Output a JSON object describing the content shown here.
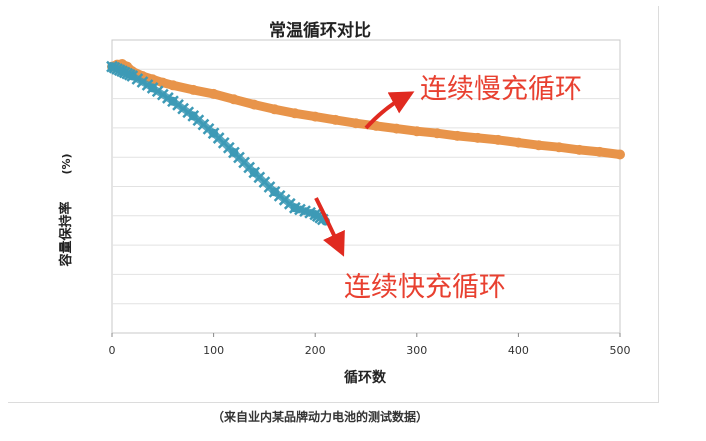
{
  "chart_data": {
    "type": "line",
    "title": "常温循环对比",
    "xlabel": "循环数",
    "ylabel": "容量保持率",
    "ylabel_unit": "(%)",
    "xlim": [
      0,
      500
    ],
    "xticks": [
      0,
      100,
      200,
      300,
      400,
      500
    ],
    "ytick_labels_shown": false,
    "grid": true,
    "series": [
      {
        "name": "连续慢充循环",
        "color": "#e8944a",
        "x": [
          0,
          5,
          10,
          15,
          20,
          30,
          40,
          50,
          60,
          80,
          100,
          120,
          140,
          160,
          180,
          200,
          220,
          240,
          260,
          280,
          300,
          320,
          340,
          360,
          380,
          400,
          420,
          440,
          460,
          480,
          500
        ],
        "y": [
          100,
          100.3,
          100.4,
          100,
          99.3,
          98.6,
          98.1,
          97.6,
          97.2,
          96.5,
          95.9,
          95.1,
          94.3,
          93.6,
          93.0,
          92.5,
          92.0,
          91.5,
          91.1,
          90.7,
          90.3,
          90.0,
          89.6,
          89.3,
          89.0,
          88.6,
          88.2,
          87.9,
          87.5,
          87.2,
          86.8
        ]
      },
      {
        "name": "连续快充循环",
        "color": "#3d9ab6",
        "x": [
          0,
          10,
          20,
          40,
          60,
          80,
          100,
          120,
          140,
          160,
          180,
          200,
          210
        ],
        "y": [
          100,
          99.3,
          98.6,
          96.8,
          94.8,
          92.6,
          90.0,
          87.1,
          84.1,
          81.2,
          78.8,
          77.8,
          76.8
        ]
      }
    ],
    "annotations": [
      {
        "text": "连续慢充循环",
        "color": "#e84030"
      },
      {
        "text": "连续快充循环",
        "color": "#e84030"
      }
    ]
  },
  "caption": "（来自业内某品牌动力电池的测试数据）"
}
